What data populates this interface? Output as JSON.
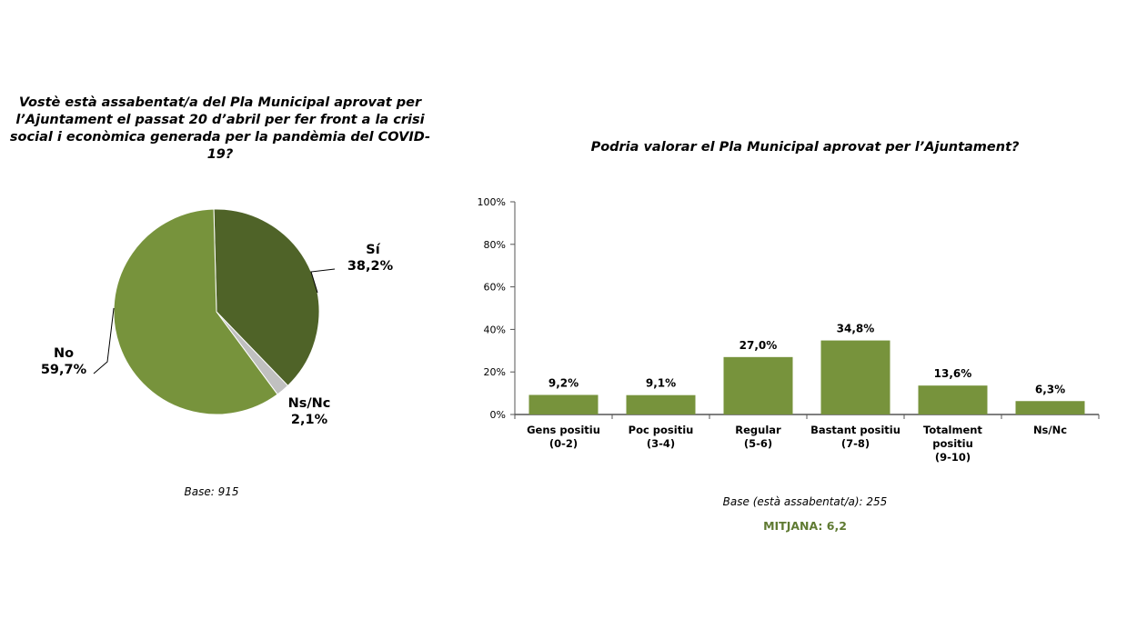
{
  "chart_data": [
    {
      "type": "pie",
      "title": "Vostè està assabentat/a del Pla Municipal aprovat per l’Ajuntament el passat 20 d’abril per fer front a la crisi social i econòmica generada per la pandèmia del COVID-19?",
      "slices": [
        {
          "label": "Sí",
          "value": 38.2,
          "value_label": "38,2%",
          "color": "#4f6328"
        },
        {
          "label": "Ns/Nc",
          "value": 2.1,
          "value_label": "2,1%",
          "color": "#c0c0c0"
        },
        {
          "label": "No",
          "value": 59.7,
          "value_label": "59,7%",
          "color": "#77933c"
        }
      ],
      "base": "Base: 915"
    },
    {
      "type": "bar",
      "title": "Podria valorar el Pla Municipal aprovat per l’Ajuntament?",
      "categories": [
        [
          "Gens positiu",
          "(0-2)"
        ],
        [
          "Poc positiu",
          "(3-4)"
        ],
        [
          "Regular",
          "(5-6)"
        ],
        [
          "Bastant positiu",
          "(7-8)"
        ],
        [
          "Totalment",
          "positiu",
          "(9-10)"
        ],
        [
          "Ns/Nc"
        ]
      ],
      "values": [
        9.2,
        9.1,
        27.0,
        34.8,
        13.6,
        6.3
      ],
      "value_labels": [
        "9,2%",
        "9,1%",
        "27,0%",
        "34,8%",
        "13,6%",
        "6,3%"
      ],
      "ylim": [
        0,
        100
      ],
      "yticks": [
        "0%",
        "20%",
        "40%",
        "60%",
        "80%",
        "100%"
      ],
      "bar_color": "#77933c",
      "base": "Base (està assabentat/a): 255",
      "mean": "MITJANA: 6,2"
    }
  ]
}
